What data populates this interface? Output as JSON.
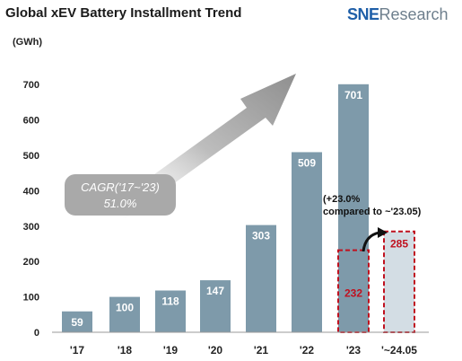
{
  "header": {
    "title": "Global xEV Battery Installment Trend"
  },
  "logo": {
    "part1": "SNE",
    "part2": "Research"
  },
  "colors": {
    "bar": "#7e9aaa",
    "bar_dashed_fill": "#d3dde4",
    "dashed_border": "#c0111f",
    "arrow": "#9a9a9a",
    "callout_bg": "#a9a9a9",
    "value_red": "#c0111f"
  },
  "chart_data": {
    "type": "bar",
    "ylabel": "(GWh)",
    "ylim": [
      0,
      700
    ],
    "yticks": [
      0,
      100,
      200,
      300,
      400,
      500,
      600,
      700
    ],
    "categories": [
      "'17",
      "'18",
      "'19",
      "'20",
      "'21",
      "'22",
      "'23",
      "'~24.05"
    ],
    "series": [
      {
        "values": [
          59,
          100,
          118,
          147,
          303,
          509,
          701,
          null
        ]
      },
      {
        "values": [
          null,
          null,
          null,
          null,
          null,
          null,
          232,
          285
        ]
      }
    ],
    "data_labels": [
      "59",
      "100",
      "118",
      "147",
      "303",
      "509",
      "701",
      "232",
      "285"
    ],
    "annotations": {
      "cagr_line1": "CAGR('17~'23)",
      "cagr_line2": "51.0%",
      "growth_line1": "(+23.0%",
      "growth_line2": "compared to ~'23.05)"
    },
    "grid": false
  }
}
